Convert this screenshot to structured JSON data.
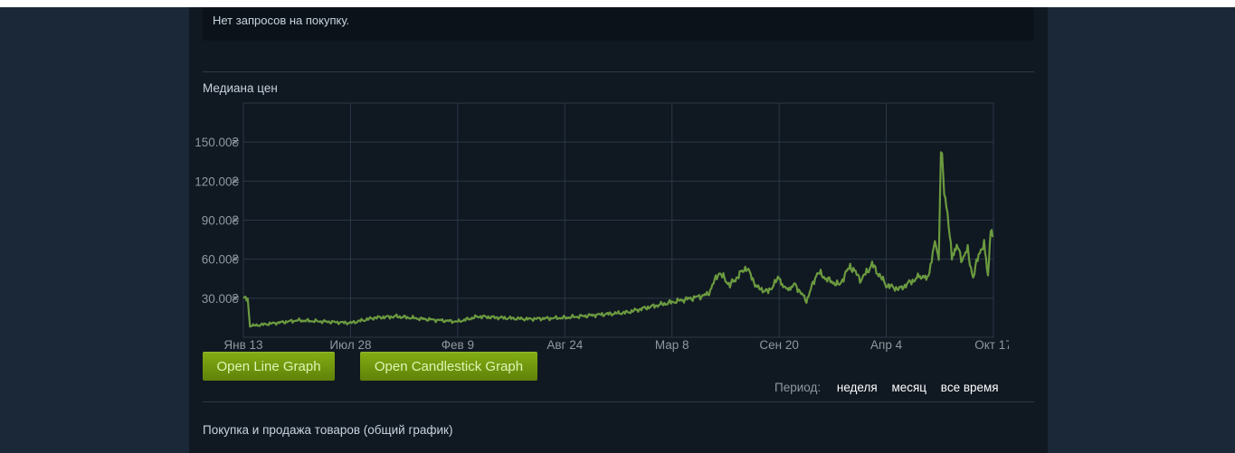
{
  "orders": {
    "no_requests_text": "Нет запросов на покупку."
  },
  "median": {
    "title": "Медиана цен"
  },
  "buttons": {
    "line_graph": "Open Line Graph",
    "candlestick_graph": "Open Candlestick Graph"
  },
  "period": {
    "label": "Период:",
    "options": [
      "неделя",
      "месяц",
      "все время"
    ]
  },
  "activity": {
    "title": "Покупка и продажа товаров (общий график)"
  },
  "colors": {
    "line": "#6b9a3f",
    "grid": "#2a3846",
    "accent": "#5f8209"
  },
  "chart_data": {
    "type": "line",
    "title": "Медиана цен",
    "xlabel": "",
    "ylabel": "",
    "y_ticks": [
      "30.00₴",
      "60.00₴",
      "90.00₴",
      "120.00₴",
      "150.00₴"
    ],
    "y_tick_values": [
      30,
      60,
      90,
      120,
      150
    ],
    "x_ticks": [
      "Янв 13",
      "Июл 28",
      "Фев 9",
      "Авг 24",
      "Мар 8",
      "Сен 20",
      "Апр 4",
      "Окт 17"
    ],
    "x_tick_values": [
      0,
      196,
      392,
      588,
      784,
      980,
      1176,
      1372
    ],
    "x_unit": "days since first tick",
    "ylim": [
      0,
      180
    ],
    "xlim": [
      0,
      1372
    ],
    "grid": true,
    "series": [
      {
        "name": "Медиана цен",
        "x": [
          0,
          8,
          12,
          20,
          60,
          100,
          150,
          196,
          240,
          280,
          330,
          392,
          430,
          470,
          520,
          588,
          640,
          700,
          740,
          784,
          820,
          850,
          870,
          890,
          920,
          940,
          960,
          980,
          995,
          1010,
          1030,
          1050,
          1070,
          1090,
          1110,
          1130,
          1150,
          1176,
          1200,
          1230,
          1255,
          1265,
          1272,
          1276,
          1282,
          1290,
          1296,
          1305,
          1315,
          1325,
          1335,
          1345,
          1355,
          1362,
          1367,
          1372
        ],
        "y": [
          30,
          29,
          9,
          9,
          11,
          13,
          12,
          11,
          15,
          16,
          14,
          12,
          16,
          15,
          14,
          15,
          17,
          19,
          23,
          27,
          30,
          33,
          50,
          40,
          54,
          38,
          35,
          46,
          36,
          40,
          28,
          50,
          44,
          40,
          55,
          44,
          56,
          40,
          37,
          45,
          48,
          75,
          60,
          150,
          110,
          90,
          60,
          70,
          60,
          67,
          45,
          65,
          70,
          45,
          85,
          78
        ]
      }
    ]
  }
}
